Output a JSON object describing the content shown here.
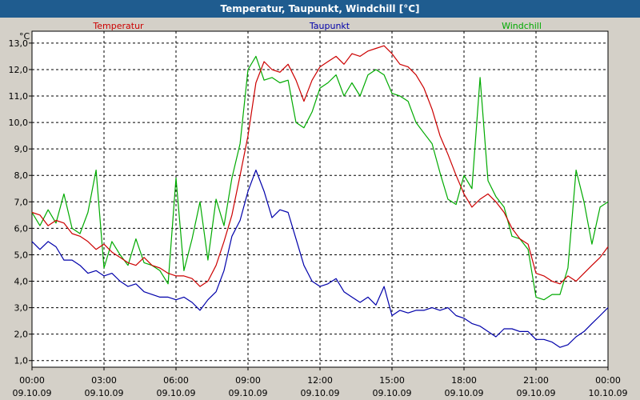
{
  "window": {
    "title": "Temperatur, Taupunkt, Windchill [°C]"
  },
  "chart_data": {
    "type": "line",
    "title": "Temperatur, Taupunkt, Windchill [°C]",
    "ylabel": "°C",
    "xlabel": "",
    "ylim": [
      0.75,
      13.45
    ],
    "xlim": [
      0,
      24
    ],
    "grid": true,
    "legend_position": "top",
    "y_ticks": [
      "1,0",
      "2,0",
      "3,0",
      "4,0",
      "5,0",
      "6,0",
      "7,0",
      "8,0",
      "9,0",
      "10,0",
      "11,0",
      "12,0",
      "13,0"
    ],
    "x_ticks": [
      {
        "hours": 0,
        "time": "00:00",
        "date": "09.10.09"
      },
      {
        "hours": 3,
        "time": "03:00",
        "date": "09.10.09"
      },
      {
        "hours": 6,
        "time": "06:00",
        "date": "09.10.09"
      },
      {
        "hours": 9,
        "time": "09:00",
        "date": "09.10.09"
      },
      {
        "hours": 12,
        "time": "12:00",
        "date": "09.10.09"
      },
      {
        "hours": 15,
        "time": "15:00",
        "date": "09.10.09"
      },
      {
        "hours": 18,
        "time": "18:00",
        "date": "09.10.09"
      },
      {
        "hours": 21,
        "time": "21:00",
        "date": "09.10.09"
      },
      {
        "hours": 24,
        "time": "00:00",
        "date": "10.10.09"
      }
    ],
    "series": [
      {
        "name": "Temperatur",
        "color": "#cc0000",
        "x": [
          0,
          0.33,
          0.67,
          1,
          1.33,
          1.67,
          2,
          2.33,
          2.67,
          3,
          3.33,
          3.67,
          4,
          4.33,
          4.67,
          5,
          5.33,
          5.67,
          6,
          6.33,
          6.67,
          7,
          7.33,
          7.67,
          8,
          8.33,
          8.67,
          9,
          9.33,
          9.67,
          10,
          10.33,
          10.67,
          11,
          11.33,
          11.67,
          12,
          12.33,
          12.67,
          13,
          13.33,
          13.67,
          14,
          14.33,
          14.67,
          15,
          15.33,
          15.67,
          16,
          16.33,
          16.67,
          17,
          17.33,
          17.67,
          18,
          18.33,
          18.67,
          19,
          19.33,
          19.67,
          20,
          20.33,
          20.67,
          21,
          21.33,
          21.67,
          22,
          22.33,
          22.67,
          23,
          23.33,
          23.67,
          24
        ],
        "values": [
          6.6,
          6.5,
          6.1,
          6.3,
          6.2,
          5.8,
          5.7,
          5.5,
          5.2,
          5.4,
          5.1,
          4.9,
          4.7,
          4.6,
          4.9,
          4.6,
          4.5,
          4.3,
          4.2,
          4.2,
          4.1,
          3.8,
          4.0,
          4.6,
          5.5,
          6.5,
          8.0,
          9.5,
          11.5,
          12.3,
          12.0,
          11.9,
          12.2,
          11.6,
          10.8,
          11.6,
          12.1,
          12.3,
          12.5,
          12.2,
          12.6,
          12.5,
          12.7,
          12.8,
          12.9,
          12.6,
          12.2,
          12.1,
          11.8,
          11.3,
          10.5,
          9.5,
          8.8,
          8.0,
          7.3,
          6.8,
          7.1,
          7.3,
          7.0,
          6.6,
          6.0,
          5.6,
          5.4,
          4.3,
          4.2,
          4.0,
          3.9,
          4.2,
          4.0,
          4.3,
          4.6,
          4.9,
          5.3
        ]
      },
      {
        "name": "Taupunkt",
        "color": "#0000aa",
        "x": [
          0,
          0.33,
          0.67,
          1,
          1.33,
          1.67,
          2,
          2.33,
          2.67,
          3,
          3.33,
          3.67,
          4,
          4.33,
          4.67,
          5,
          5.33,
          5.67,
          6,
          6.33,
          6.67,
          7,
          7.33,
          7.67,
          8,
          8.33,
          8.67,
          9,
          9.33,
          9.67,
          10,
          10.33,
          10.67,
          11,
          11.33,
          11.67,
          12,
          12.33,
          12.67,
          13,
          13.33,
          13.67,
          14,
          14.33,
          14.67,
          15,
          15.33,
          15.67,
          16,
          16.33,
          16.67,
          17,
          17.33,
          17.67,
          18,
          18.33,
          18.67,
          19,
          19.33,
          19.67,
          20,
          20.33,
          20.67,
          21,
          21.33,
          21.67,
          22,
          22.33,
          22.67,
          23,
          23.33,
          23.67,
          24
        ],
        "values": [
          5.5,
          5.2,
          5.5,
          5.3,
          4.8,
          4.8,
          4.6,
          4.3,
          4.4,
          4.2,
          4.3,
          4.0,
          3.8,
          3.9,
          3.6,
          3.5,
          3.4,
          3.4,
          3.3,
          3.4,
          3.2,
          2.9,
          3.3,
          3.6,
          4.4,
          5.7,
          6.3,
          7.4,
          8.2,
          7.4,
          6.4,
          6.7,
          6.6,
          5.6,
          4.6,
          4.0,
          3.8,
          3.9,
          4.1,
          3.6,
          3.4,
          3.2,
          3.4,
          3.1,
          3.8,
          2.7,
          2.9,
          2.8,
          2.9,
          2.9,
          3.0,
          2.9,
          3.0,
          2.7,
          2.6,
          2.4,
          2.3,
          2.1,
          1.9,
          2.2,
          2.2,
          2.1,
          2.1,
          1.8,
          1.8,
          1.7,
          1.5,
          1.6,
          1.9,
          2.1,
          2.4,
          2.7,
          3.0
        ]
      },
      {
        "name": "Windchill",
        "color": "#00aa00",
        "x": [
          0,
          0.33,
          0.67,
          1,
          1.33,
          1.67,
          2,
          2.33,
          2.67,
          3,
          3.33,
          3.67,
          4,
          4.33,
          4.67,
          5,
          5.33,
          5.67,
          6,
          6.33,
          6.67,
          7,
          7.33,
          7.67,
          8,
          8.33,
          8.67,
          9,
          9.33,
          9.67,
          10,
          10.33,
          10.67,
          11,
          11.33,
          11.67,
          12,
          12.33,
          12.67,
          13,
          13.33,
          13.67,
          14,
          14.33,
          14.67,
          15,
          15.33,
          15.67,
          16,
          16.33,
          16.67,
          17,
          17.33,
          17.67,
          18,
          18.33,
          18.67,
          19,
          19.33,
          19.67,
          20,
          20.33,
          20.67,
          21,
          21.33,
          21.67,
          22,
          22.33,
          22.67,
          23,
          23.33,
          23.67,
          24
        ],
        "values": [
          6.6,
          6.1,
          6.7,
          6.2,
          7.3,
          6.0,
          5.8,
          6.6,
          8.2,
          4.5,
          5.5,
          5.0,
          4.6,
          5.6,
          4.7,
          4.6,
          4.4,
          3.9,
          7.9,
          4.4,
          5.6,
          7.0,
          4.8,
          7.1,
          6.1,
          7.9,
          9.2,
          12.0,
          12.5,
          11.6,
          11.7,
          11.5,
          11.6,
          10.0,
          9.8,
          10.4,
          11.3,
          11.5,
          11.8,
          11.0,
          11.5,
          11.0,
          11.8,
          12.0,
          11.8,
          11.1,
          11.0,
          10.8,
          10.0,
          9.6,
          9.2,
          8.1,
          7.1,
          6.9,
          8.0,
          7.5,
          11.7,
          7.8,
          7.2,
          6.8,
          5.7,
          5.6,
          5.2,
          3.4,
          3.3,
          3.5,
          3.5,
          4.5,
          8.2,
          7.0,
          5.4,
          6.8,
          7.0
        ]
      }
    ]
  }
}
